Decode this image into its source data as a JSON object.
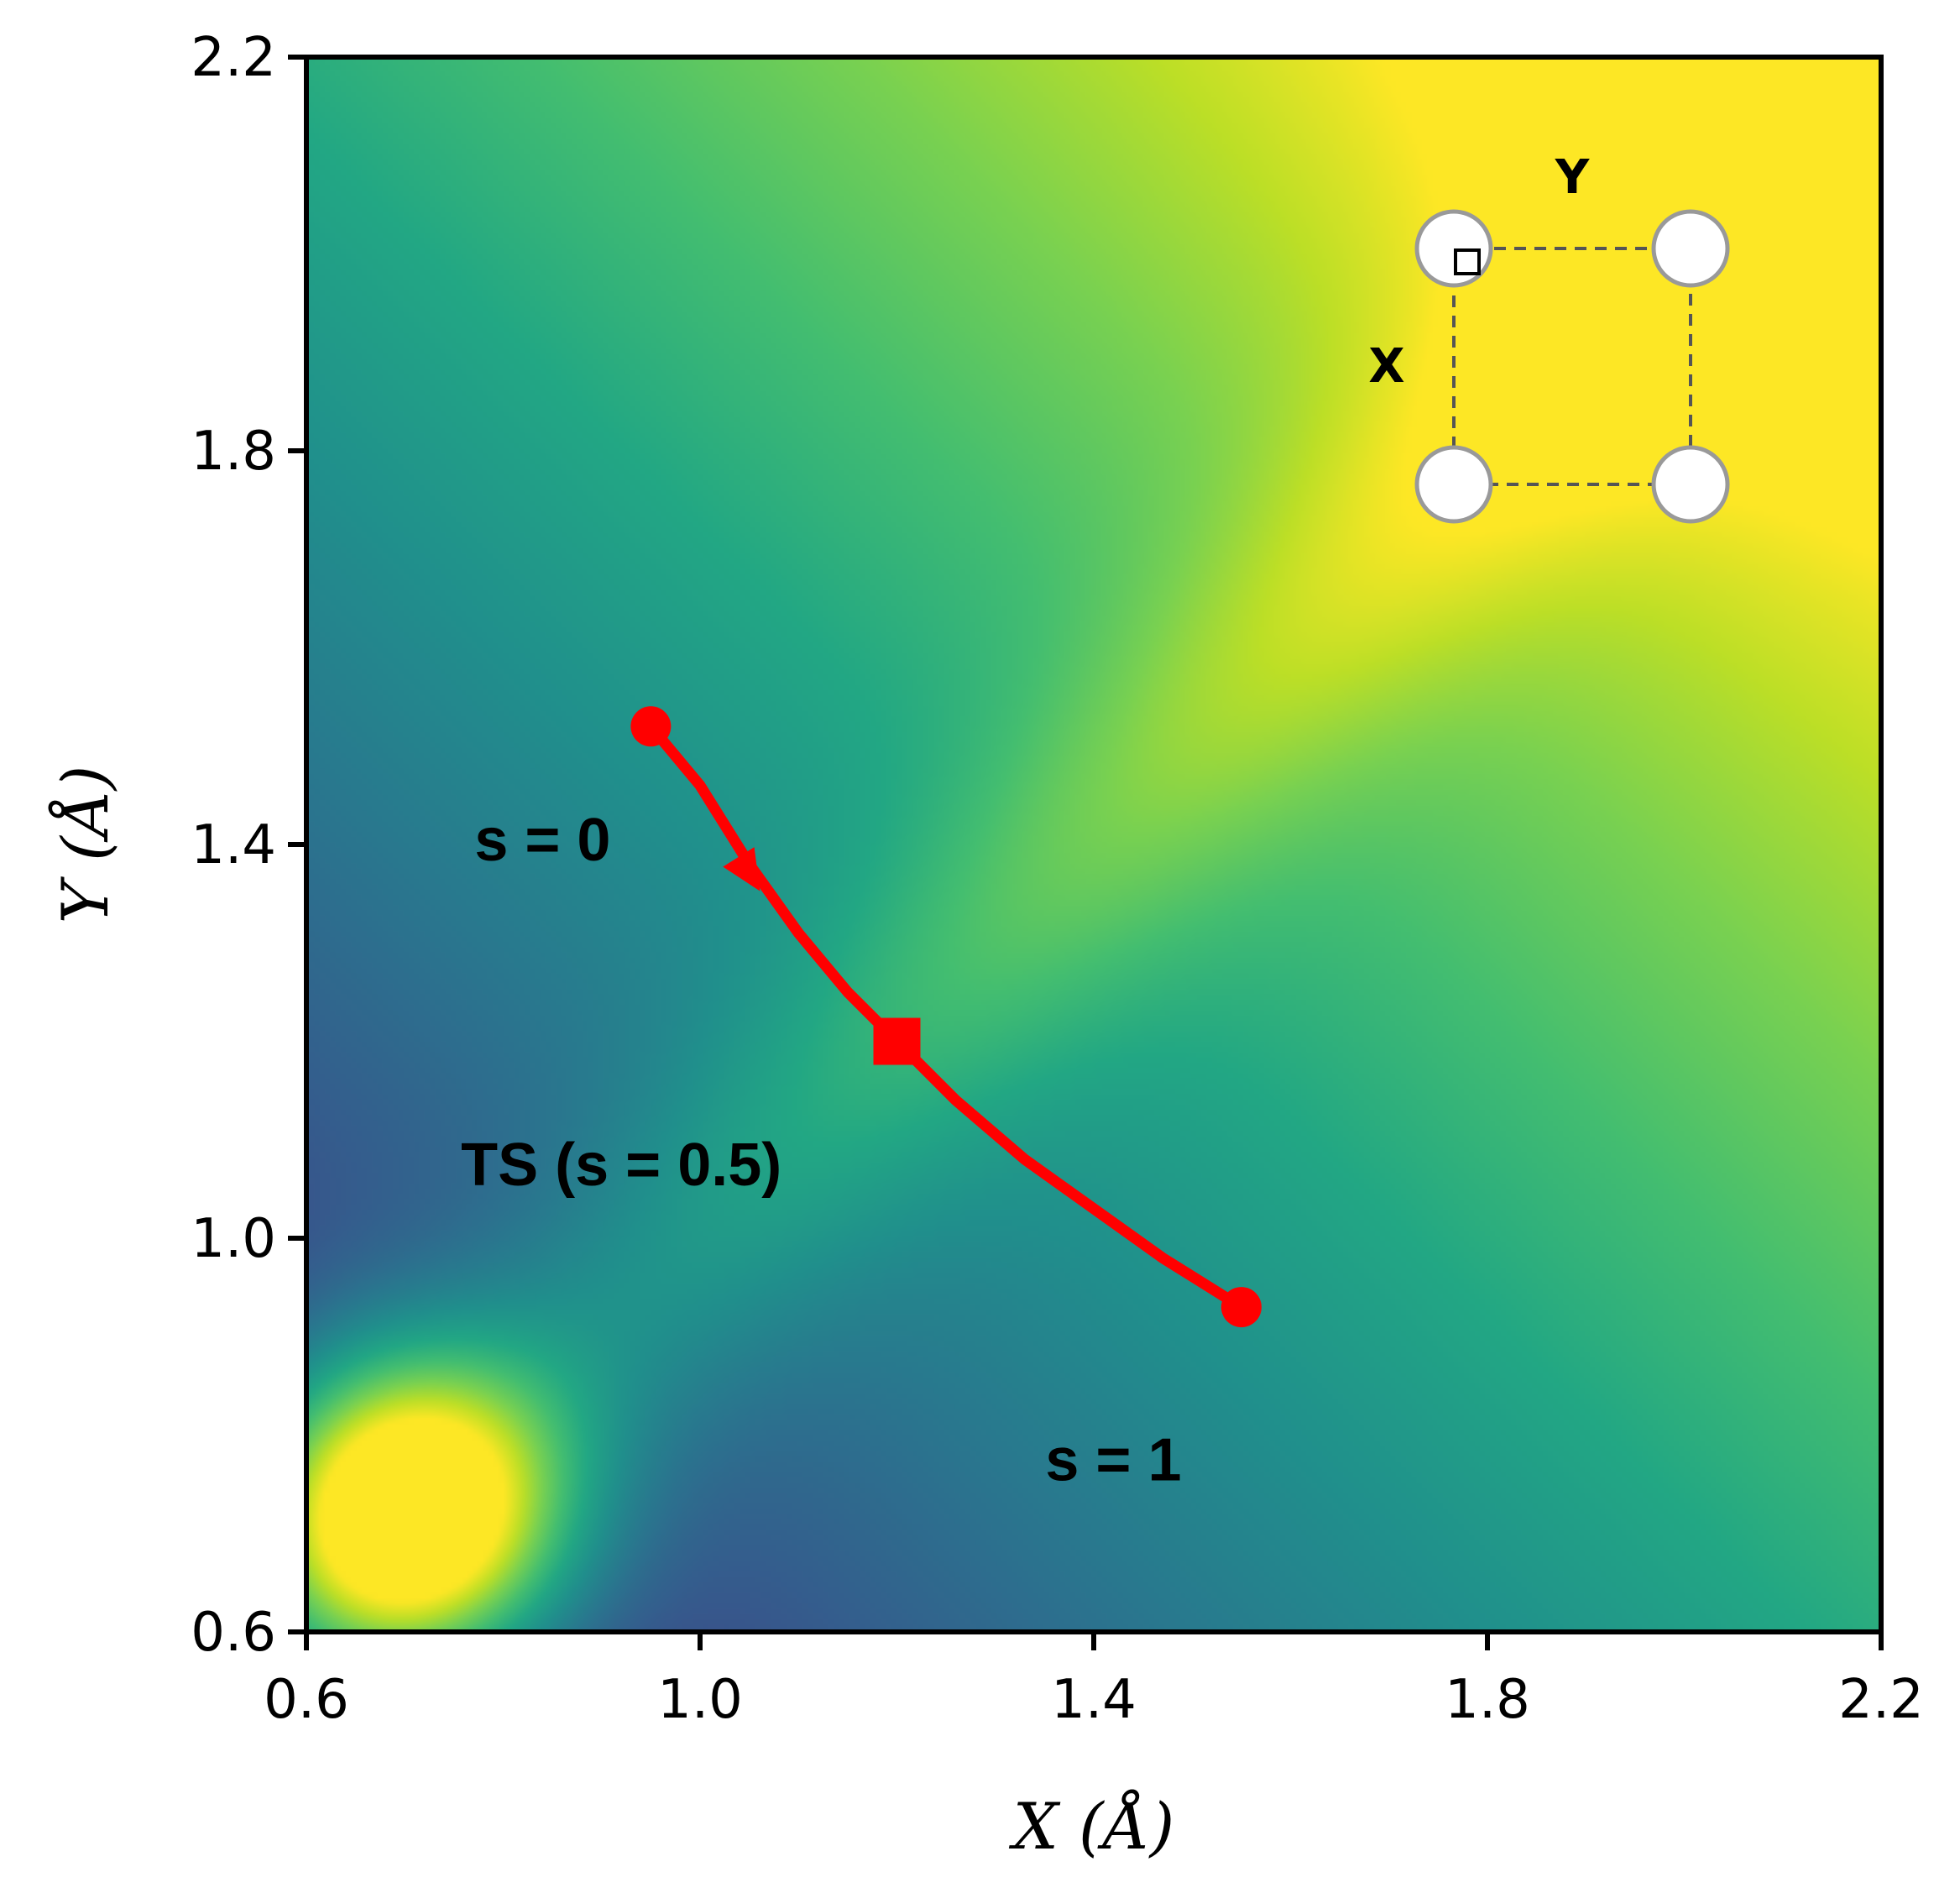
{
  "chart_data": {
    "type": "heatmap",
    "title": "",
    "xlabel": "X (Å)",
    "ylabel": "Y (Å)",
    "xlim": [
      0.6,
      2.2
    ],
    "ylim": [
      0.6,
      2.2
    ],
    "xticks": [
      "0.6",
      "1.0",
      "1.4",
      "1.8",
      "2.2"
    ],
    "yticks": [
      "0.6",
      "1.0",
      "1.4",
      "1.8",
      "2.2"
    ],
    "colormap": "viridis",
    "grid": false,
    "path": {
      "color": "#ff0000",
      "points": [
        [
          0.95,
          1.52
        ],
        [
          1.0,
          1.46
        ],
        [
          1.05,
          1.38
        ],
        [
          1.1,
          1.31
        ],
        [
          1.15,
          1.25
        ],
        [
          1.2,
          1.2
        ],
        [
          1.26,
          1.14
        ],
        [
          1.33,
          1.08
        ],
        [
          1.4,
          1.03
        ],
        [
          1.47,
          0.98
        ],
        [
          1.55,
          0.93
        ]
      ],
      "start": [
        0.95,
        1.52
      ],
      "end": [
        1.55,
        0.93
      ],
      "transition_state": [
        1.2,
        1.2
      ],
      "arrow_at": [
        1.05,
        1.37
      ]
    },
    "annotations": [
      {
        "text": "s = 0",
        "x": 0.84,
        "y": 1.4
      },
      {
        "text": "TS (s = 0.5)",
        "x": 0.92,
        "y": 1.07
      },
      {
        "text": "s = 1",
        "x": 1.42,
        "y": 0.77
      }
    ],
    "inset": {
      "label_x": "X",
      "label_y": "Y",
      "atom_color": "#ffffff",
      "edge_color": "#999999",
      "dash_color": "#555555"
    }
  }
}
